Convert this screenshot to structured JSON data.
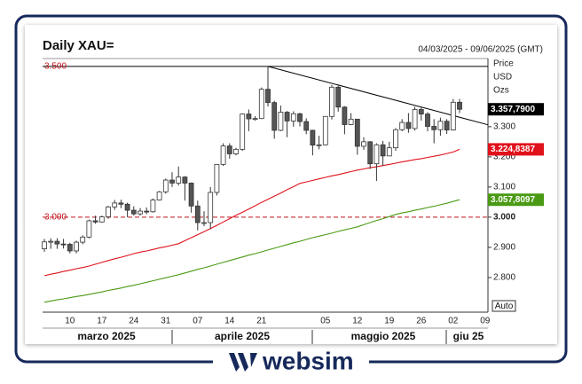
{
  "chart_data": {
    "type": "candlestick",
    "title": "Daily XAU=",
    "subtitle": "04/03/2025 - 09/06/2025 (GMT)",
    "unit_labels": [
      "Price",
      "USD",
      "Ozs"
    ],
    "scale_button": "Auto",
    "brand": "websim",
    "categories": [
      null,
      null,
      null,
      null,
      "10",
      null,
      null,
      null,
      null,
      "17",
      null,
      null,
      null,
      null,
      "24",
      null,
      null,
      null,
      null,
      "31",
      null,
      null,
      null,
      null,
      "07",
      null,
      null,
      null,
      null,
      "14",
      null,
      null,
      null,
      null,
      "21",
      null,
      null,
      null,
      null,
      null,
      null,
      null,
      null,
      null,
      "05",
      null,
      null,
      null,
      null,
      "12",
      null,
      null,
      null,
      null,
      "19",
      null,
      null,
      null,
      null,
      "26",
      null,
      null,
      null,
      null,
      "02",
      null,
      null,
      null,
      null,
      "09"
    ],
    "months": [
      "marzo 2025",
      "aprile 2025",
      "maggio 2025",
      "giu 25"
    ],
    "open": [
      2895,
      2918,
      2920,
      2911,
      2910,
      2888,
      2917,
      2934,
      2988,
      2984,
      3001,
      3034,
      3047,
      3043,
      3023,
      3011,
      3020,
      3018,
      3057,
      3084,
      3123,
      3113,
      3133,
      3113,
      3037,
      2982,
      2982,
      3082,
      3175,
      3236,
      3210,
      3225,
      3342,
      3326,
      3327,
      3424,
      3380,
      3288,
      3348,
      3319,
      3343,
      3317,
      3288,
      3239,
      3240,
      3334,
      3431,
      3365,
      3307,
      3325,
      3235,
      3250,
      3177,
      3240,
      3203,
      3230,
      3290,
      3314,
      3294,
      3357,
      3342,
      3301,
      3290,
      3318,
      3289,
      3381,
      null,
      null,
      null,
      null
    ],
    "high": [
      2928,
      2930,
      2930,
      2928,
      2915,
      2922,
      2940,
      2992,
      3005,
      3005,
      3038,
      3057,
      3058,
      3048,
      3036,
      3030,
      3032,
      3062,
      3087,
      3128,
      3149,
      3168,
      3136,
      3115,
      3055,
      3020,
      3100,
      3176,
      3245,
      3245,
      3230,
      3344,
      3357,
      3335,
      3430,
      3500,
      3386,
      3370,
      3352,
      3351,
      3346,
      3328,
      3290,
      3270,
      3335,
      3438,
      3436,
      3368,
      3345,
      3326,
      3265,
      3252,
      3245,
      3253,
      3250,
      3295,
      3325,
      3345,
      3366,
      3365,
      3348,
      3325,
      3330,
      3325,
      3392,
      3392,
      null,
      null,
      null,
      null
    ],
    "low": [
      2885,
      2895,
      2895,
      2896,
      2880,
      2880,
      2910,
      2930,
      2978,
      2982,
      2995,
      3024,
      3030,
      3000,
      3005,
      3005,
      3010,
      3015,
      3055,
      3078,
      3100,
      3105,
      3055,
      3015,
      2956,
      2970,
      2960,
      3072,
      3170,
      3194,
      3205,
      3220,
      3285,
      3320,
      3325,
      3367,
      3260,
      3285,
      3265,
      3300,
      3301,
      3275,
      3205,
      3225,
      3238,
      3324,
      3350,
      3275,
      3305,
      3207,
      3223,
      3160,
      3120,
      3170,
      3205,
      3220,
      3285,
      3280,
      3287,
      3320,
      3285,
      3245,
      3270,
      3276,
      3287,
      3345,
      null,
      null,
      null,
      null
    ],
    "close": [
      2918,
      2920,
      2911,
      2910,
      2888,
      2917,
      2934,
      2988,
      2984,
      3001,
      3034,
      3047,
      3043,
      3023,
      3011,
      3020,
      3018,
      3057,
      3084,
      3123,
      3113,
      3133,
      3113,
      3037,
      2982,
      2982,
      3082,
      3175,
      3236,
      3210,
      3225,
      3342,
      3326,
      3327,
      3424,
      3380,
      3288,
      3348,
      3319,
      3343,
      3317,
      3288,
      3239,
      3240,
      3334,
      3431,
      3365,
      3307,
      3325,
      3235,
      3250,
      3177,
      3240,
      3203,
      3230,
      3290,
      3314,
      3294,
      3357,
      3342,
      3301,
      3290,
      3318,
      3289,
      3381,
      3357.79,
      null,
      null,
      null,
      null
    ],
    "last_label": "3.357,7900",
    "series": [
      {
        "color": "#e0121b",
        "last_label": "3.224,8387",
        "values": [
          2806,
          2811,
          2815,
          2820,
          2824,
          2829,
          2833,
          2838,
          2844,
          2850,
          2856,
          2862,
          2867,
          2873,
          2879,
          2884,
          2888,
          2893,
          2898,
          2902,
          2907,
          2912,
          2922,
          2932,
          2942,
          2952,
          2962,
          2973,
          2984,
          2995,
          3006,
          3016,
          3027,
          3038,
          3049,
          3059,
          3070,
          3080,
          3091,
          3101,
          3112,
          3117,
          3122,
          3127,
          3132,
          3137,
          3141,
          3146,
          3151,
          3156,
          3160,
          3164,
          3167,
          3171,
          3175,
          3179,
          3183,
          3187,
          3191,
          3194,
          3198,
          3202,
          3206,
          3211,
          3216,
          3224.8387,
          null,
          null,
          null,
          null
        ]
      },
      {
        "color": "#4a9a14",
        "last_label": "3.057,8097",
        "values": [
          2718,
          2722,
          2726,
          2729,
          2733,
          2737,
          2740,
          2744,
          2748,
          2752,
          2757,
          2761,
          2765,
          2770,
          2774,
          2779,
          2784,
          2789,
          2794,
          2799,
          2804,
          2809,
          2815,
          2821,
          2827,
          2832,
          2838,
          2844,
          2850,
          2856,
          2862,
          2868,
          2874,
          2879,
          2885,
          2891,
          2897,
          2903,
          2909,
          2915,
          2920,
          2926,
          2932,
          2937,
          2942,
          2947,
          2953,
          2958,
          2963,
          2968,
          2975,
          2982,
          2989,
          2995,
          3002,
          3009,
          3014,
          3018,
          3023,
          3027,
          3032,
          3036,
          3041,
          3046,
          3052,
          3057.8097,
          null,
          null,
          null,
          null
        ]
      }
    ],
    "hlines": [
      {
        "value": 3500,
        "label": "3.500",
        "color": "#000000",
        "dash": false
      },
      {
        "value": 3000,
        "label": "3.000",
        "color": "#c0141b",
        "dash": true
      }
    ],
    "trendline": {
      "x": [
        35,
        69.5
      ],
      "values": [
        3500,
        3306
      ]
    },
    "ylim": [
      2685,
      3526
    ],
    "yticks": [
      {
        "value": 2800,
        "label": "2.800"
      },
      {
        "value": 2900,
        "label": "2.900"
      },
      {
        "value": 3000,
        "label": "3.000"
      },
      {
        "value": 3100,
        "label": "3.100"
      },
      {
        "value": 3200,
        "label": "3.200"
      },
      {
        "value": 3300,
        "label": "3.300"
      }
    ],
    "up_color": "#ffffff",
    "down_color": "#555555"
  }
}
